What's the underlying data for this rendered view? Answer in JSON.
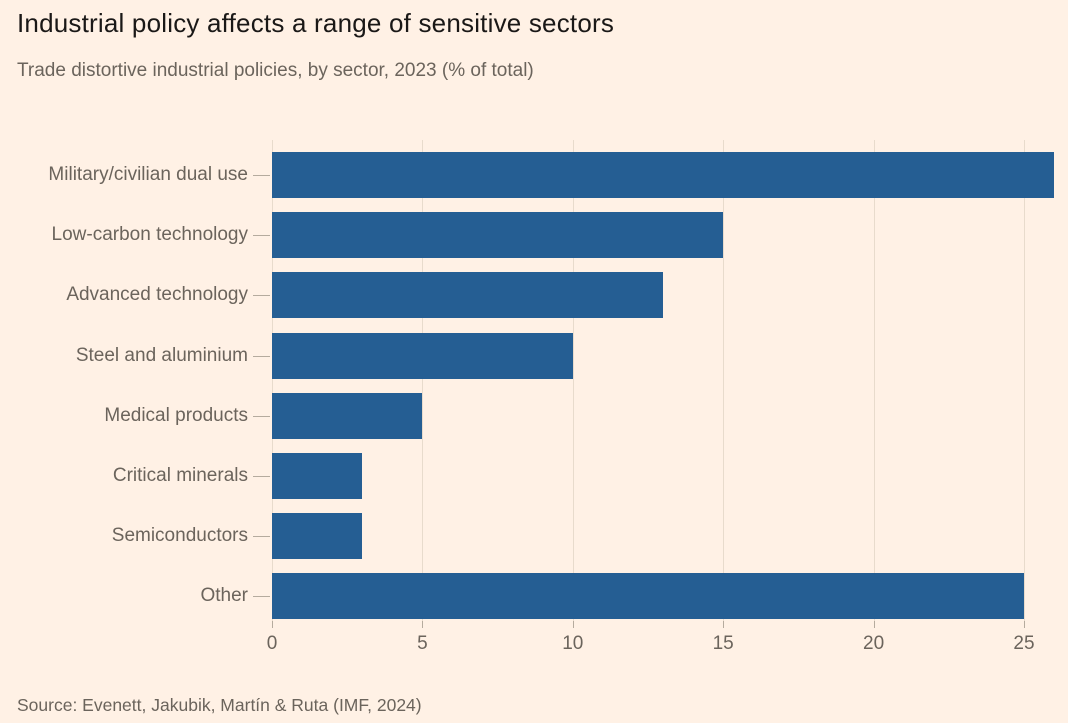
{
  "chart_data": {
    "type": "bar",
    "orientation": "horizontal",
    "title": "Industrial policy affects a range of sensitive sectors",
    "subtitle": "Trade distortive industrial policies, by sector, 2023 (% of total)",
    "source": "Source: Evenett, Jakubik, Martín & Ruta (IMF, 2024)",
    "categories": [
      "Military/civilian dual use",
      "Low-carbon technology",
      "Advanced technology",
      "Steel and aluminium",
      "Medical products",
      "Critical minerals",
      "Semiconductors",
      "Other"
    ],
    "values": [
      26,
      15,
      13,
      10,
      5,
      3,
      3,
      25
    ],
    "xlabel": "",
    "ylabel": "",
    "xticks": [
      0,
      5,
      10,
      15,
      20,
      25
    ],
    "xlim": [
      0,
      26.1
    ],
    "grid": "vertical",
    "legend": "none",
    "colors": {
      "background": "#fff1e5",
      "bar": "#255e93",
      "title_text": "#1a1817",
      "muted_text": "#6b645c",
      "gridline": "#e8dbcc",
      "tick": "#b5ab9e"
    }
  }
}
